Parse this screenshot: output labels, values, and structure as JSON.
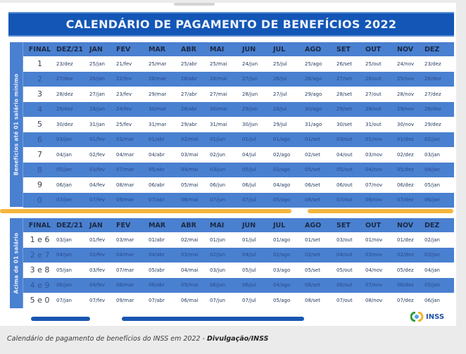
{
  "title": "CALENDÁRIO DE PAGAMENTO DE BENEFÍCIOS 2022",
  "columns": [
    "FINAL",
    "DEZ/21",
    "JAN",
    "FEV",
    "MAR",
    "ABR",
    "MAI",
    "JUN",
    "JUL",
    "AGO",
    "SET",
    "OUT",
    "NOV",
    "DEZ"
  ],
  "table1": {
    "side_label": "Benefícios até 01 salário mínimo",
    "rows": [
      [
        "1",
        "23/dez",
        "25/jan",
        "21/fev",
        "25/mar",
        "25/abr",
        "25/mai",
        "24/jun",
        "25/jul",
        "25/ago",
        "26/set",
        "25/out",
        "24/nov",
        "23/dez"
      ],
      [
        "2",
        "27/dez",
        "26/jan",
        "22/fev",
        "28/mar",
        "26/abr",
        "26/mai",
        "27/jun",
        "26/jul",
        "26/ago",
        "27/set",
        "26/out",
        "25/nov",
        "26/dez"
      ],
      [
        "3",
        "28/dez",
        "27/jan",
        "23/fev",
        "29/mar",
        "27/abr",
        "27/mai",
        "28/jun",
        "27/jul",
        "29/ago",
        "28/set",
        "27/out",
        "28/nov",
        "27/dez"
      ],
      [
        "4",
        "29/dez",
        "28/jan",
        "24/fev",
        "30/mar",
        "28/abr",
        "30/mai",
        "29/jun",
        "28/jul",
        "30/ago",
        "29/set",
        "28/out",
        "29/nov",
        "28/dez"
      ],
      [
        "5",
        "30/dez",
        "31/jan",
        "25/fev",
        "31/mar",
        "29/abr",
        "31/mai",
        "30/jun",
        "29/jul",
        "31/ago",
        "30/set",
        "31/out",
        "30/nov",
        "29/dez"
      ],
      [
        "6",
        "03/jan",
        "01/fev",
        "03/mar",
        "01/abr",
        "02/mai",
        "01/jun",
        "01/jul",
        "01/ago",
        "01/set",
        "03/out",
        "01/nov",
        "01/dez",
        "02/jan"
      ],
      [
        "7",
        "04/jan",
        "02/fev",
        "04/mar",
        "04/abr",
        "03/mai",
        "02/jun",
        "04/jul",
        "02/ago",
        "02/set",
        "04/out",
        "03/nov",
        "02/dez",
        "03/jan"
      ],
      [
        "8",
        "05/jan",
        "03/fev",
        "07/mar",
        "05/abr",
        "04/mai",
        "03/jun",
        "05/jul",
        "03/ago",
        "05/set",
        "05/out",
        "04/nov",
        "05/dez",
        "04/jan"
      ],
      [
        "9",
        "06/jan",
        "04/fev",
        "08/mar",
        "06/abr",
        "05/mai",
        "06/jun",
        "06/jul",
        "04/ago",
        "06/set",
        "06/out",
        "07/nov",
        "06/dez",
        "05/jan"
      ],
      [
        "0",
        "07/jan",
        "07/fev",
        "09/mar",
        "07/abr",
        "06/mai",
        "07/jun",
        "07/jul",
        "05/ago",
        "08/set",
        "07/out",
        "08/nov",
        "07/dez",
        "06/jan"
      ]
    ]
  },
  "table2": {
    "side_label": "Acima de 01 salário",
    "rows": [
      [
        "1 e 6",
        "03/jan",
        "01/fev",
        "03/mar",
        "01/abr",
        "02/mai",
        "01/jun",
        "01/jul",
        "01/ago",
        "01/set",
        "03/out",
        "01/nov",
        "01/dez",
        "02/jan"
      ],
      [
        "2 e 7",
        "04/jan",
        "02/fev",
        "04/mar",
        "04/abr",
        "03/mai",
        "02/jun",
        "04/jul",
        "02/ago",
        "02/set",
        "04/out",
        "03/nov",
        "02/dez",
        "03/jan"
      ],
      [
        "3 e 8",
        "05/jan",
        "03/fev",
        "07/mar",
        "05/abr",
        "04/mai",
        "03/jun",
        "05/jul",
        "03/ago",
        "05/set",
        "05/out",
        "04/nov",
        "05/dez",
        "04/jan"
      ],
      [
        "4 e 9",
        "06/jan",
        "04/fev",
        "08/mar",
        "06/abr",
        "05/mai",
        "06/jun",
        "06/jul",
        "04/ago",
        "06/set",
        "06/out",
        "07/nov",
        "06/dez",
        "05/jan"
      ],
      [
        "5 e 0",
        "07/jan",
        "07/fev",
        "09/mar",
        "07/abr",
        "06/mai",
        "07/jun",
        "07/jul",
        "05/ago",
        "08/set",
        "07/out",
        "08/nov",
        "07/dez",
        "06/jan"
      ]
    ]
  },
  "logo": {
    "icon": "inss-logo-icon",
    "text": "INSS"
  },
  "caption": {
    "text": "Calendário de pagamento de benefícios do INSS em 2022 - ",
    "credit": "Divulgação/INSS"
  },
  "colors": {
    "title_bg": "#1356b6",
    "row_blue": "#4a80d0",
    "orange": "#f5b63c",
    "pill_blue": "#1a56b2"
  }
}
